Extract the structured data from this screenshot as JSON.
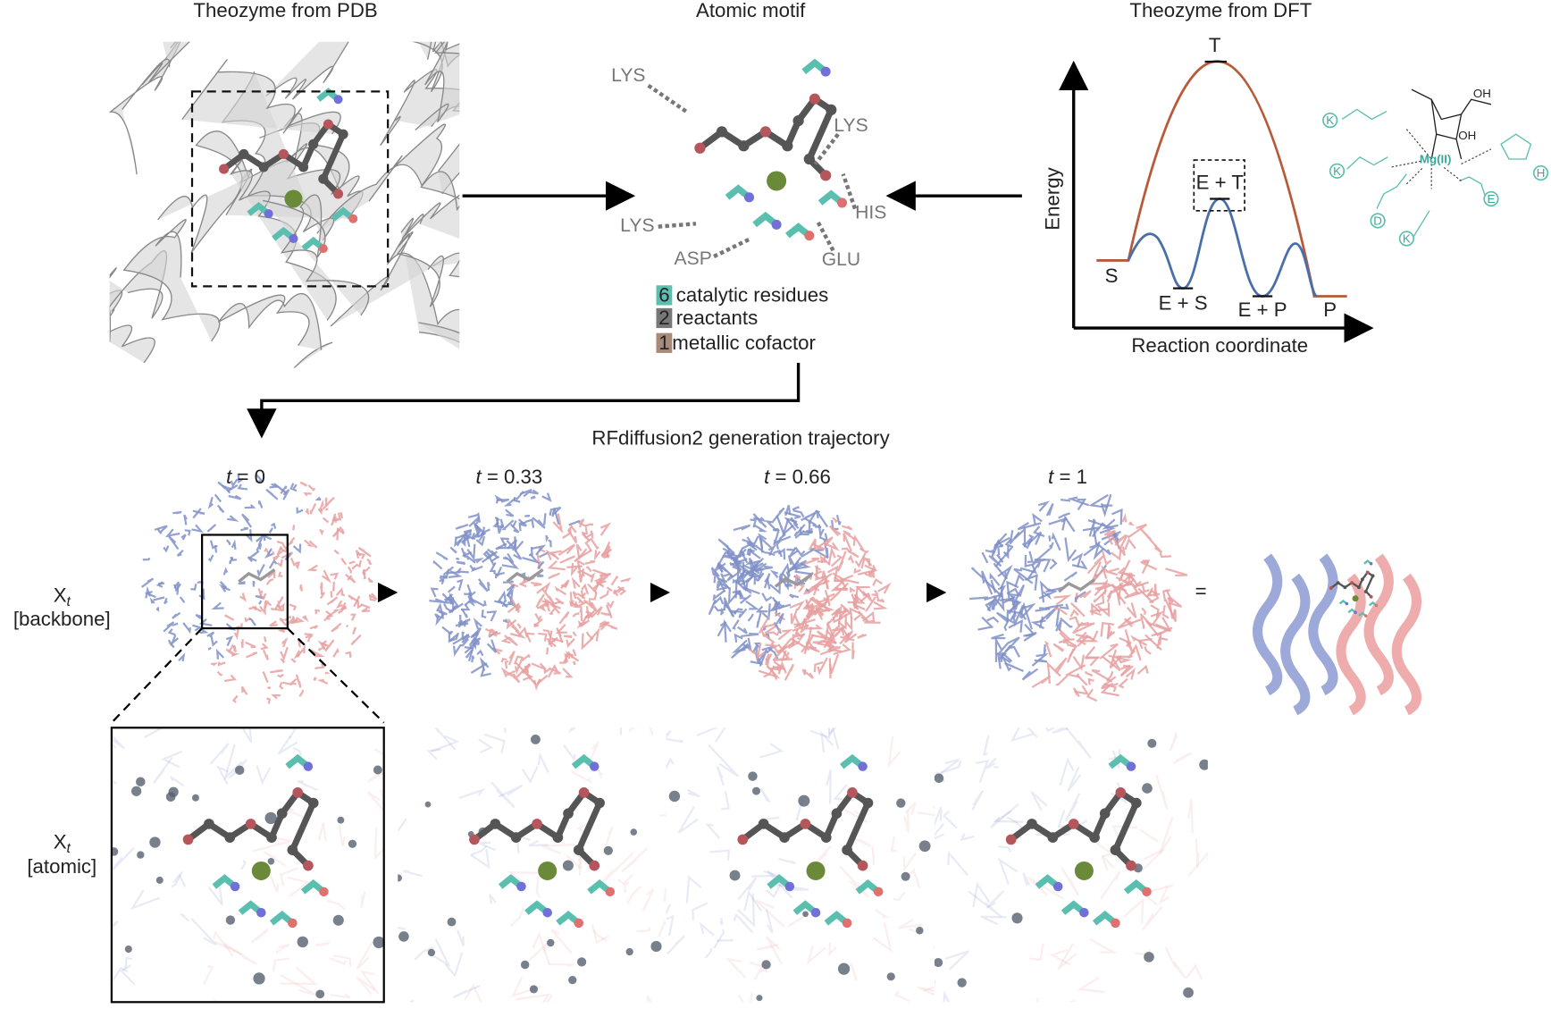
{
  "panels": {
    "pdb": {
      "title": "Theozyme from PDB"
    },
    "motif": {
      "title": "Atomic motif",
      "residue_labels": [
        "LYS",
        "LYS",
        "HIS",
        "LYS",
        "ASP",
        "GLU"
      ],
      "legend": [
        {
          "count": "6",
          "label": "catalytic residues"
        },
        {
          "count": "2",
          "label": "reactants"
        },
        {
          "count": "1",
          "label": "metallic cofactor"
        }
      ]
    },
    "dft": {
      "title": "Theozyme from DFT",
      "y_axis": "Energy",
      "x_axis": "Reaction coordinate",
      "states": [
        "T",
        "S",
        "E + S",
        "E + T",
        "E + P",
        "P"
      ],
      "chemistry_labels": [
        "OH",
        "OH",
        "Mg(II)",
        "K",
        "K",
        "K",
        "D",
        "E",
        "H"
      ]
    }
  },
  "trajectory": {
    "title": "RFdiffusion2 generation trajectory",
    "steps": [
      {
        "symbol": "t",
        "label": "= 0"
      },
      {
        "symbol": "t",
        "label": "= 0.33"
      },
      {
        "symbol": "t",
        "label": "= 0.66"
      },
      {
        "symbol": "t",
        "label": "= 1"
      }
    ],
    "rows": [
      {
        "symbol": "X",
        "subscript": "t",
        "label": "[backbone]"
      },
      {
        "symbol": "X",
        "subscript": "t",
        "label": "[atomic]"
      }
    ],
    "equals": "="
  }
}
